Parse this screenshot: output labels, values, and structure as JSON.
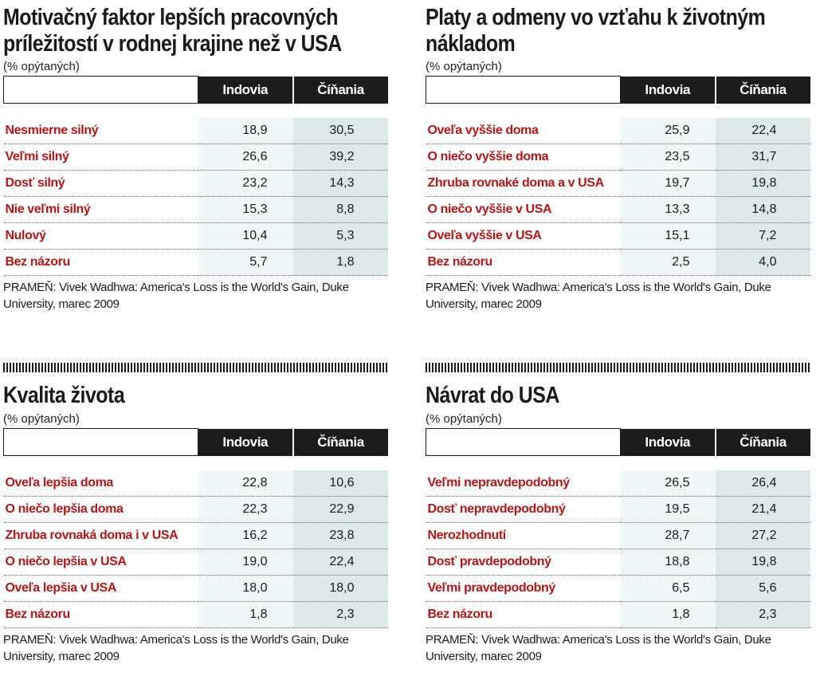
{
  "columns": [
    "Indovia",
    "Číňania"
  ],
  "panels": [
    {
      "title": "Motivačný faktor lepších pracovných príležitostí v rodnej krajine než v USA",
      "unit": "(% opýtaných)",
      "rows": [
        {
          "label": "Nesmierne silný",
          "indovia": "18,9",
          "cinania": "30,5"
        },
        {
          "label": "Veľmi silný",
          "indovia": "26,6",
          "cinania": "39,2"
        },
        {
          "label": "Dosť silný",
          "indovia": "23,2",
          "cinania": "14,3"
        },
        {
          "label": "Nie veľmi silný",
          "indovia": "15,3",
          "cinania": "8,8"
        },
        {
          "label": "Nulový",
          "indovia": "10,4",
          "cinania": "5,3"
        },
        {
          "label": "Bez názoru",
          "indovia": "5,7",
          "cinania": "1,8"
        }
      ],
      "source": "PRAMEŇ: Vivek Wadhwa: America's Loss is the World's Gain, Duke University, marec 2009"
    },
    {
      "title": "Platy a odmeny vo vzťahu k životným nákladom",
      "unit": "(% opýtaných)",
      "rows": [
        {
          "label": "Oveľa vyššie doma",
          "indovia": "25,9",
          "cinania": "22,4"
        },
        {
          "label": "O niečo vyššie doma",
          "indovia": "23,5",
          "cinania": "31,7"
        },
        {
          "label": "Zhruba rovnaké doma a v USA",
          "indovia": "19,7",
          "cinania": "19,8"
        },
        {
          "label": "O niečo vyššie v USA",
          "indovia": "13,3",
          "cinania": "14,8"
        },
        {
          "label": "Oveľa vyššie v USA",
          "indovia": "15,1",
          "cinania": "7,2"
        },
        {
          "label": "Bez názoru",
          "indovia": "2,5",
          "cinania": "4,0"
        }
      ],
      "source": "PRAMEŇ: Vivek Wadhwa: America's Loss is the World's Gain, Duke University, marec 2009"
    },
    {
      "title": "Kvalita života",
      "unit": "(% opýtaných)",
      "rows": [
        {
          "label": "Oveľa lepšia doma",
          "indovia": "22,8",
          "cinania": "10,6"
        },
        {
          "label": "O niečo lepšia doma",
          "indovia": "22,3",
          "cinania": "22,9"
        },
        {
          "label": "Zhruba rovnaká doma i v USA",
          "indovia": "16,2",
          "cinania": "23,8"
        },
        {
          "label": "O niečo lepšia v USA",
          "indovia": "19,0",
          "cinania": "22,4"
        },
        {
          "label": "Oveľa lepšia v USA",
          "indovia": "18,0",
          "cinania": "18,0"
        },
        {
          "label": "Bez názoru",
          "indovia": "1,8",
          "cinania": "2,3"
        }
      ],
      "source": "PRAMEŇ: Vivek Wadhwa: America's Loss is the World's Gain, Duke University, marec 2009"
    },
    {
      "title": "Návrat do USA",
      "unit": "(% opýtaných)",
      "rows": [
        {
          "label": "Veľmi nepravdepodobný",
          "indovia": "26,5",
          "cinania": "26,4"
        },
        {
          "label": "Dosť nepravdepodobný",
          "indovia": "19,5",
          "cinania": "21,4"
        },
        {
          "label": "Nerozhodnutí",
          "indovia": "28,7",
          "cinania": "27,2"
        },
        {
          "label": "Dosť pravdepodobný",
          "indovia": "18,8",
          "cinania": "19,8"
        },
        {
          "label": "Veľmi pravdepodobný",
          "indovia": "6,5",
          "cinania": "5,6"
        },
        {
          "label": "Bez názoru",
          "indovia": "1,8",
          "cinania": "2,3"
        }
      ],
      "source": "PRAMEŇ: Vivek Wadhwa: America's Loss is the World's Gain, Duke University, marec 2009"
    }
  ],
  "colors": {
    "label_red": "#b01818",
    "header_bg": "#1c1c1c",
    "col1_bg": "#f1f6f6",
    "col2_bg": "#dde8e8"
  }
}
